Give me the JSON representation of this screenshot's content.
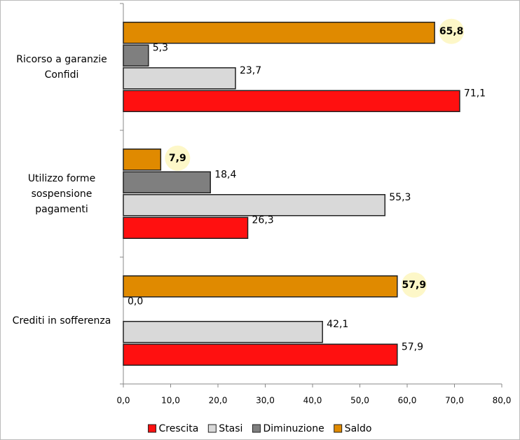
{
  "chart_data": {
    "type": "bar",
    "orientation": "horizontal",
    "categories": [
      "Ricorso a garanzie Confidi",
      "Utilizzo forme sospensione pagamenti",
      "Crediti in sofferenza"
    ],
    "series": [
      {
        "name": "Crescita",
        "color": "#ff1010",
        "values": [
          71.1,
          26.3,
          57.9
        ],
        "value_labels": [
          "71,1",
          "26,3",
          "57,9"
        ]
      },
      {
        "name": "Stasi",
        "color": "#d9d9d9",
        "values": [
          23.7,
          55.3,
          42.1
        ],
        "value_labels": [
          "23,7",
          "55,3",
          "42,1"
        ]
      },
      {
        "name": "Diminuzione",
        "color": "#7f7f7f",
        "values": [
          5.3,
          18.4,
          0.0
        ],
        "value_labels": [
          "5,3",
          "18,4",
          "0,0"
        ]
      },
      {
        "name": "Saldo",
        "color": "#e08a00",
        "values": [
          65.8,
          7.9,
          57.9
        ],
        "value_labels": [
          "65,8",
          "7,9",
          "57,9"
        ]
      }
    ],
    "xlim": [
      0,
      80
    ],
    "xticks": [
      {
        "value": 0,
        "label": "0,0"
      },
      {
        "value": 10,
        "label": "10,0"
      },
      {
        "value": 20,
        "label": "20,0"
      },
      {
        "value": 30,
        "label": "30,0"
      },
      {
        "value": 40,
        "label": "40,0"
      },
      {
        "value": 50,
        "label": "50,0"
      },
      {
        "value": 60,
        "label": "60,0"
      },
      {
        "value": 70,
        "label": "70,0"
      },
      {
        "value": 80,
        "label": "80,0"
      }
    ],
    "legend": "bottom"
  }
}
